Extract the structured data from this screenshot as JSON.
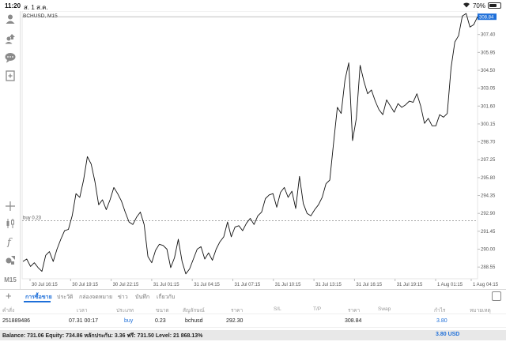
{
  "status_bar": {
    "time": "11:20",
    "date": "ส. 1 ส.ค.",
    "battery": "70%",
    "battery_level": 0.7
  },
  "left_toolbar": {
    "timeframe_label": "M15"
  },
  "chart": {
    "symbol_title": "BCHUSD, M15",
    "current_price": "308.84",
    "order_line_label": "buy 0.23",
    "y_ticks": [
      "307.40",
      "305.95",
      "304.50",
      "303.05",
      "301.60",
      "300.15",
      "298.70",
      "297.25",
      "295.80",
      "294.35",
      "292.90",
      "291.45",
      "290.00",
      "288.55"
    ],
    "x_ticks": [
      "30 Jul 16:15",
      "30 Jul 19:15",
      "30 Jul 22:15",
      "31 Jul 01:15",
      "31 Jul 04:15",
      "31 Jul 07:15",
      "31 Jul 10:15",
      "31 Jul 13:15",
      "31 Jul 16:15",
      "31 Jul 19:15",
      "1 Aug 01:15",
      "1 Aug 04:15"
    ],
    "colors": {
      "line": "#111111",
      "current_price_bg": "#1e6fd9",
      "order_line": "#999999",
      "grid": "#eeeeee"
    }
  },
  "chart_data": {
    "type": "line",
    "title": "BCHUSD, M15",
    "ylim": [
      287.6,
      309.3
    ],
    "current_price": 308.84,
    "order_price": 292.3,
    "values": [
      289.0,
      289.2,
      288.6,
      288.9,
      288.5,
      288.2,
      289.5,
      289.8,
      289.0,
      290.0,
      290.8,
      291.5,
      291.6,
      292.7,
      294.5,
      294.2,
      295.6,
      297.5,
      296.9,
      295.5,
      293.6,
      294.0,
      293.2,
      294.0,
      295.0,
      294.5,
      293.9,
      293.0,
      292.2,
      292.0,
      292.6,
      293.0,
      292.0,
      289.4,
      288.9,
      289.9,
      290.4,
      290.3,
      290.0,
      288.5,
      289.3,
      290.8,
      289.0,
      288.0,
      288.4,
      289.2,
      290.0,
      290.2,
      289.2,
      289.7,
      289.1,
      290.0,
      290.6,
      291.0,
      292.2,
      291.0,
      291.8,
      291.9,
      291.5,
      292.1,
      292.5,
      292.0,
      292.7,
      293.0,
      294.1,
      294.4,
      294.5,
      293.4,
      294.6,
      295.0,
      294.2,
      294.7,
      293.3,
      295.9,
      293.7,
      292.9,
      292.7,
      293.2,
      293.6,
      294.2,
      295.3,
      295.6,
      298.6,
      301.5,
      301.0,
      303.7,
      305.1,
      298.8,
      300.6,
      304.9,
      303.6,
      302.6,
      302.9,
      302.0,
      301.3,
      300.9,
      302.1,
      301.6,
      301.1,
      301.8,
      301.5,
      301.7,
      302.0,
      301.9,
      302.6,
      301.6,
      300.2,
      300.6,
      300.0,
      300.0,
      300.9,
      300.7,
      301.0,
      304.7,
      306.8,
      307.3,
      308.9,
      309.1,
      308.0,
      308.2,
      308.84
    ]
  },
  "tabs": {
    "items": [
      "การซื้อขาย",
      "ประวัติ",
      "กล่องจดหมาย",
      "ข่าว",
      "บันทึก",
      "เกี่ยวกับ"
    ]
  },
  "table": {
    "headers": [
      "คำสั่ง",
      "เวลา",
      "ประเภท",
      "ขนาด",
      "สัญลักษณ์",
      "ราคา",
      "S/L",
      "T/P",
      "ราคา",
      "Swap",
      "กำไร",
      "หมายเหตุ"
    ],
    "row": {
      "order": "251889486",
      "time": "07.31 00:17",
      "type": "buy",
      "size": "0.23",
      "symbol": "bchusd",
      "open_price": "292.30",
      "price": "308.84",
      "profit": "3.80"
    }
  },
  "balance": {
    "text": "Balance: 731.06 Equity: 734.86 หลักประกัน: 3.36 ฟรี: 731.50 Level: 21 868.13%",
    "profit": "3.80  USD"
  }
}
